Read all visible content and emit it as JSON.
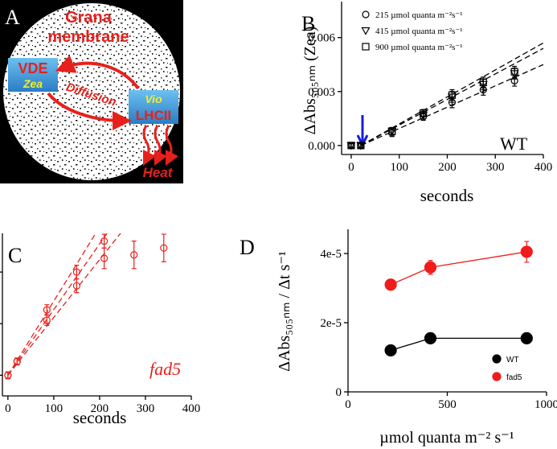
{
  "diagram": {
    "label": "A",
    "title": [
      "Grana",
      "membrane"
    ],
    "boxes": [
      {
        "label": "VDE",
        "sublabel": "Zea"
      },
      {
        "label": "LHCII",
        "sublabel": "Vio"
      }
    ],
    "arrow_label": "Diffusion",
    "output": "Heat"
  },
  "chart_data": [
    {
      "type": "scatter",
      "panel": "B",
      "x_label": "seconds",
      "y_label": "ΔAbs₅₀₅ₙₘ (Zea)",
      "annotation": "WT",
      "xlim": [
        -20,
        400
      ],
      "ylim": [
        -0.0005,
        0.008
      ],
      "xticks": [
        0,
        100,
        200,
        300,
        400
      ],
      "yticks": [
        {
          "value": 0,
          "label": "0.000"
        },
        {
          "value": 0.003,
          "label": "0.003"
        },
        {
          "value": 0.006,
          "label": "0.006"
        }
      ],
      "x": [
        0,
        20,
        85,
        150,
        210,
        275,
        340
      ],
      "series": [
        {
          "name": "215 µmol quanta m⁻²s⁻¹",
          "marker": "circle",
          "color": "#000000",
          "values": [
            0,
            0,
            0.0007,
            0.0016,
            0.0024,
            0.0031,
            0.0036
          ],
          "errors": [
            0.0001,
            0.0001,
            0.0002,
            0.0002,
            0.0003,
            0.0003,
            0.0003
          ]
        },
        {
          "name": "415 µmol quanta m⁻²s⁻¹",
          "marker": "triangle",
          "color": "#000000",
          "values": [
            0,
            0,
            0.0008,
            0.0017,
            0.0027,
            0.0034,
            0.004
          ],
          "errors": [
            0.0001,
            0.0001,
            0.0002,
            0.0002,
            0.0003,
            0.0003,
            0.0003
          ]
        },
        {
          "name": "900 µmol quanta m⁻²s⁻¹",
          "marker": "square",
          "color": "#000000",
          "values": [
            0,
            0,
            0.0008,
            0.0018,
            0.0028,
            0.0035,
            0.0041
          ],
          "errors": [
            0.0001,
            0.0001,
            0.0002,
            0.0002,
            0.0003,
            0.0003,
            0.0003
          ]
        }
      ],
      "fits": [
        {
          "x": [
            20,
            400
          ],
          "values": [
            0,
            0.0045
          ]
        },
        {
          "x": [
            20,
            400
          ],
          "values": [
            0,
            0.0054
          ]
        },
        {
          "x": [
            20,
            400
          ],
          "values": [
            0,
            0.0057
          ]
        }
      ],
      "fit_color": "#000000"
    },
    {
      "type": "scatter",
      "panel": "C",
      "x_label": "seconds",
      "annotation": "fad5",
      "xlim": [
        -12,
        400
      ],
      "ylim": [
        -0.0012,
        0.00825
      ],
      "xticks": [
        0,
        100,
        200,
        300,
        400
      ],
      "yticks": [
        0,
        0.003,
        0.006
      ],
      "ytick_labels": false,
      "x": [
        0,
        20,
        85,
        150,
        210,
        275,
        340
      ],
      "series": [
        {
          "marker": "circle",
          "color": "#e8201c",
          "values": [
            0,
            0.0008,
            0.0032,
            0.0052,
            0.0068,
            0.007,
            0.0074
          ],
          "errors": [
            0.0002,
            0.0002,
            0.0003,
            0.0004,
            0.0006,
            0.0008,
            0.0008
          ]
        },
        {
          "marker": "circle",
          "color": "#e8201c",
          "values": [
            0,
            0.0008,
            0.0038,
            0.006,
            0.0078,
            null,
            null
          ],
          "errors": [
            0.0002,
            0.0002,
            0.0003,
            0.0004,
            0.0004,
            null,
            null
          ]
        }
      ],
      "fits": [
        {
          "x": [
            0,
            250
          ],
          "values": [
            0,
            0.0084
          ]
        },
        {
          "x": [
            0,
            220
          ],
          "values": [
            0,
            0.0084
          ]
        },
        {
          "x": [
            0,
            195
          ],
          "values": [
            0,
            0.0084
          ]
        }
      ],
      "fit_color": "#e8201c"
    },
    {
      "type": "line",
      "panel": "D",
      "x_label": "µmol quanta m⁻² s⁻¹",
      "y_label": "ΔAbs₅₀₅ₙₘ / Δt s⁻¹",
      "xlim": [
        0,
        1000
      ],
      "ylim": [
        0,
        4.7e-05
      ],
      "xticks": [
        0,
        500,
        1000
      ],
      "yticks": [
        0,
        {
          "value": 2e-05,
          "label": "2e-5"
        },
        {
          "value": 4e-05,
          "label": "4e-5"
        }
      ],
      "x": [
        215,
        415,
        900
      ],
      "legend": "lower right",
      "series": [
        {
          "name": "WT",
          "marker": "disc",
          "color": "#000000",
          "values": [
            1.2e-05,
            1.55e-05,
            1.55e-05
          ],
          "errors": [
            1e-06,
            1e-06,
            1e-06
          ]
        },
        {
          "name": "fad5",
          "marker": "disc",
          "color": "#f01c1c",
          "values": [
            3.1e-05,
            3.6e-05,
            4.05e-05
          ],
          "errors": [
            1e-06,
            2e-06,
            3e-06
          ]
        }
      ]
    }
  ]
}
